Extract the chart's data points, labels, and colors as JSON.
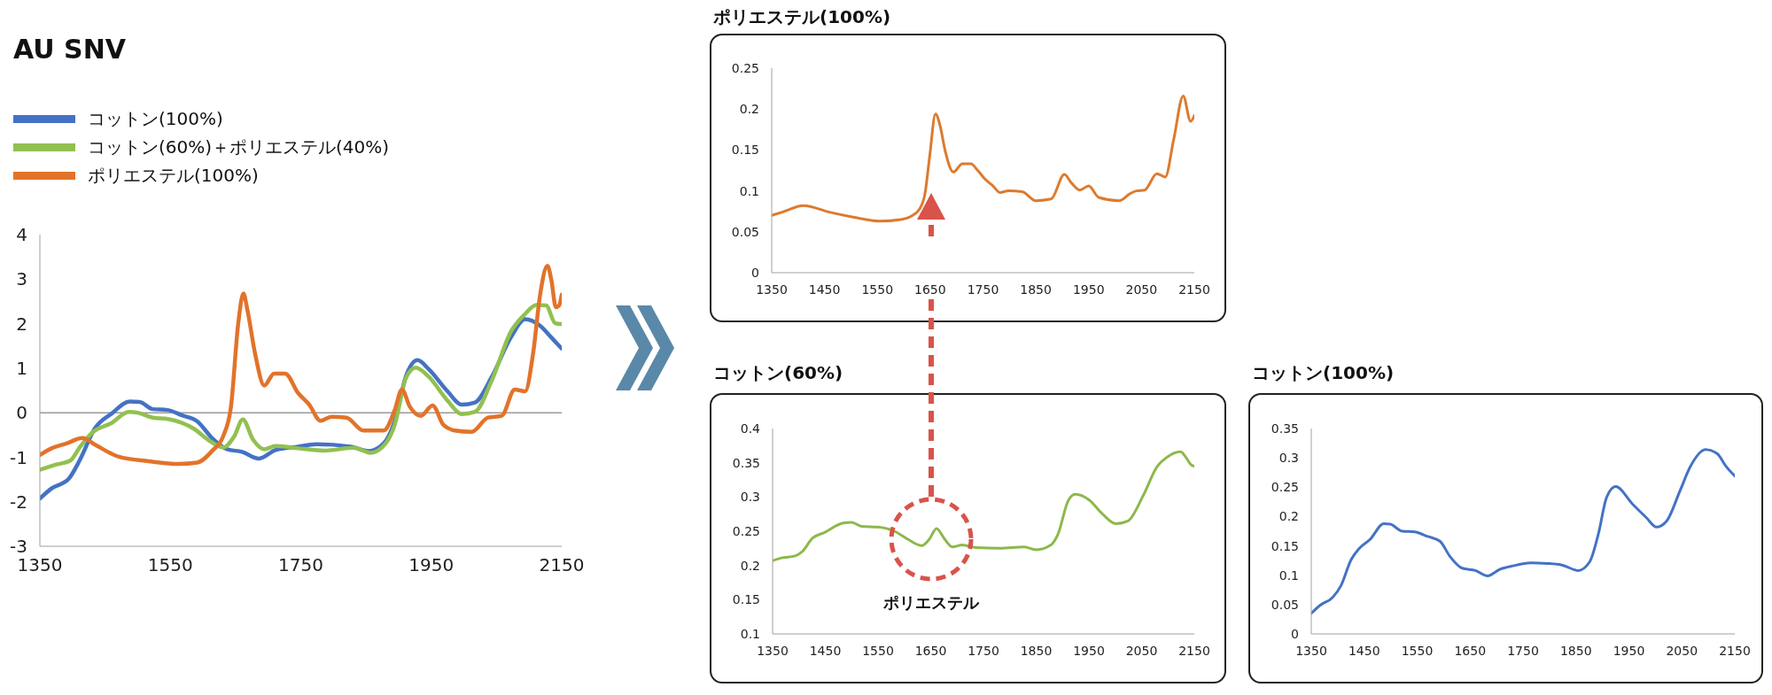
{
  "chart_data": [
    {
      "type": "line",
      "title": "AU SNV",
      "legend": "top left",
      "xlim": [
        1350,
        2150
      ],
      "xticks": [
        1350,
        1550,
        1750,
        1950,
        2150
      ],
      "ylim": [
        -3,
        4
      ],
      "yticks": [
        -3,
        -2,
        -1,
        0,
        1,
        2,
        3,
        4
      ],
      "ref_lines": [
        {
          "axis": "y",
          "value": 0,
          "color": "#9a9a9a"
        }
      ],
      "series": [
        {
          "name": "コットン(100%)",
          "color": "#4472c4",
          "x": [
            1350,
            1368,
            1394,
            1411,
            1434,
            1460,
            1488,
            1503,
            1523,
            1546,
            1568,
            1591,
            1614,
            1637,
            1660,
            1686,
            1711,
            1746,
            1774,
            1826,
            1854,
            1877,
            1894,
            1911,
            1929,
            1946,
            1975,
            1997,
            2017,
            2043,
            2072,
            2094,
            2117,
            2134,
            2150
          ],
          "values": [
            -1.93,
            -1.7,
            -1.49,
            -1.07,
            -0.36,
            -0.02,
            0.25,
            0.24,
            0.08,
            0.06,
            -0.06,
            -0.19,
            -0.57,
            -0.82,
            -0.88,
            -1.03,
            -0.84,
            -0.76,
            -0.71,
            -0.76,
            -0.86,
            -0.69,
            -0.19,
            0.81,
            1.18,
            0.98,
            0.48,
            0.18,
            0.23,
            0.81,
            1.69,
            2.1,
            1.95,
            1.69,
            1.44
          ]
        },
        {
          "name": "コットン(60%)＋ポリエステル(40%)",
          "color": "#92c050",
          "x": [
            1350,
            1374,
            1397,
            1411,
            1431,
            1460,
            1486,
            1500,
            1523,
            1546,
            1586,
            1608,
            1631,
            1648,
            1661,
            1677,
            1694,
            1711,
            1746,
            1786,
            1832,
            1857,
            1880,
            1894,
            1911,
            1926,
            1946,
            1975,
            1997,
            2017,
            2043,
            2072,
            2094,
            2111,
            2126,
            2140,
            2150
          ],
          "values": [
            -1.28,
            -1.17,
            -1.07,
            -0.78,
            -0.44,
            -0.23,
            0.02,
            0,
            -0.11,
            -0.14,
            -0.36,
            -0.61,
            -0.78,
            -0.53,
            -0.15,
            -0.61,
            -0.82,
            -0.75,
            -0.8,
            -0.85,
            -0.79,
            -0.9,
            -0.69,
            -0.27,
            0.77,
            1.01,
            0.81,
            0.27,
            -0.03,
            0.02,
            0.73,
            1.82,
            2.22,
            2.42,
            2.41,
            2.01,
            1.99
          ]
        },
        {
          "name": "ポリエステル(100%)",
          "color": "#e2732a",
          "x": [
            1350,
            1368,
            1391,
            1415,
            1437,
            1471,
            1517,
            1563,
            1591,
            1614,
            1631,
            1643,
            1654,
            1662,
            1668,
            1680,
            1694,
            1709,
            1726,
            1746,
            1763,
            1780,
            1797,
            1820,
            1846,
            1877,
            1894,
            1905,
            1917,
            1934,
            1952,
            1969,
            1986,
            2012,
            2037,
            2058,
            2078,
            2094,
            2106,
            2117,
            2128,
            2134,
            2141,
            2146,
            2150
          ],
          "values": [
            -0.95,
            -0.8,
            -0.69,
            -0.57,
            -0.74,
            -0.99,
            -1.09,
            -1.15,
            -1.12,
            -0.86,
            -0.53,
            0.14,
            1.99,
            2.68,
            2.32,
            1.32,
            0.61,
            0.88,
            0.88,
            0.44,
            0.18,
            -0.18,
            -0.09,
            -0.11,
            -0.4,
            -0.4,
            0.06,
            0.52,
            0.14,
            -0.07,
            0.16,
            -0.28,
            -0.4,
            -0.43,
            -0.11,
            -0.07,
            0.52,
            0.48,
            1.32,
            2.66,
            3.3,
            2.99,
            2.37,
            2.41,
            2.65
          ]
        }
      ]
    },
    {
      "type": "line",
      "title": "ポリエステル(100%)",
      "xlim": [
        1350,
        2150
      ],
      "xticks": [
        1350,
        1450,
        1550,
        1650,
        1750,
        1850,
        1950,
        2050,
        2150
      ],
      "ylim": [
        0,
        0.25
      ],
      "yticks": [
        0,
        0.05,
        0.1,
        0.15,
        0.2,
        0.25
      ],
      "series": [
        {
          "color": "#dd7a2e",
          "x": [
            1350,
            1370,
            1410,
            1459,
            1504,
            1555,
            1594,
            1614,
            1630,
            1640,
            1649,
            1660,
            1669,
            1678,
            1694,
            1711,
            1727,
            1740,
            1753,
            1769,
            1782,
            1798,
            1824,
            1850,
            1879,
            1904,
            1917,
            1933,
            1950,
            1969,
            2008,
            2027,
            2040,
            2056,
            2079,
            2095,
            2111,
            2129,
            2143,
            2150
          ],
          "values": [
            0.07,
            0.074,
            0.082,
            0.074,
            0.068,
            0.063,
            0.065,
            0.069,
            0.078,
            0.096,
            0.142,
            0.194,
            0.179,
            0.15,
            0.123,
            0.133,
            0.133,
            0.125,
            0.115,
            0.106,
            0.098,
            0.1,
            0.099,
            0.088,
            0.09,
            0.12,
            0.11,
            0.101,
            0.106,
            0.092,
            0.088,
            0.096,
            0.1,
            0.101,
            0.121,
            0.117,
            0.163,
            0.216,
            0.185,
            0.192
          ]
        }
      ]
    },
    {
      "type": "line",
      "title": "コットン(60%)",
      "xlim": [
        1350,
        2150
      ],
      "xticks": [
        1350,
        1450,
        1550,
        1650,
        1750,
        1850,
        1950,
        2050,
        2150
      ],
      "ylim": [
        0.1,
        0.4
      ],
      "yticks": [
        0.1,
        0.15,
        0.2,
        0.25,
        0.3,
        0.35,
        0.4
      ],
      "annotations": [
        "ポリエステル"
      ],
      "series": [
        {
          "color": "#8db84a",
          "x": [
            1350,
            1367,
            1393,
            1406,
            1426,
            1448,
            1484,
            1500,
            1519,
            1549,
            1581,
            1607,
            1633,
            1647,
            1661,
            1675,
            1691,
            1710,
            1736,
            1781,
            1827,
            1850,
            1878,
            1891,
            1911,
            1924,
            1950,
            1976,
            2001,
            2024,
            2053,
            2079,
            2098,
            2124,
            2133,
            2144,
            2150
          ],
          "values": [
            0.207,
            0.211,
            0.214,
            0.22,
            0.24,
            0.248,
            0.262,
            0.263,
            0.257,
            0.256,
            0.25,
            0.238,
            0.229,
            0.238,
            0.254,
            0.24,
            0.227,
            0.23,
            0.226,
            0.225,
            0.227,
            0.223,
            0.23,
            0.245,
            0.295,
            0.304,
            0.296,
            0.275,
            0.261,
            0.265,
            0.302,
            0.344,
            0.358,
            0.366,
            0.359,
            0.347,
            0.345
          ]
        }
      ]
    },
    {
      "type": "line",
      "title": "コットン(100%)",
      "xlim": [
        1350,
        2150
      ],
      "xticks": [
        1350,
        1450,
        1550,
        1650,
        1750,
        1850,
        1950,
        2050,
        2150
      ],
      "ylim": [
        0,
        0.35
      ],
      "yticks": [
        0,
        0.05,
        0.1,
        0.15,
        0.2,
        0.25,
        0.3,
        0.35
      ],
      "series": [
        {
          "color": "#4472c4",
          "x": [
            1350,
            1367,
            1390,
            1406,
            1425,
            1441,
            1461,
            1487,
            1499,
            1522,
            1545,
            1570,
            1593,
            1612,
            1635,
            1660,
            1683,
            1706,
            1731,
            1764,
            1796,
            1825,
            1854,
            1876,
            1892,
            1908,
            1925,
            1957,
            1983,
            2002,
            2021,
            2047,
            2066,
            2095,
            2117,
            2133,
            2150
          ],
          "values": [
            0.035,
            0.049,
            0.062,
            0.082,
            0.126,
            0.146,
            0.161,
            0.188,
            0.187,
            0.175,
            0.174,
            0.166,
            0.158,
            0.132,
            0.112,
            0.108,
            0.099,
            0.11,
            0.116,
            0.121,
            0.12,
            0.117,
            0.108,
            0.123,
            0.169,
            0.233,
            0.251,
            0.221,
            0.198,
            0.182,
            0.192,
            0.245,
            0.285,
            0.314,
            0.307,
            0.286,
            0.269
          ]
        }
      ]
    }
  ]
}
